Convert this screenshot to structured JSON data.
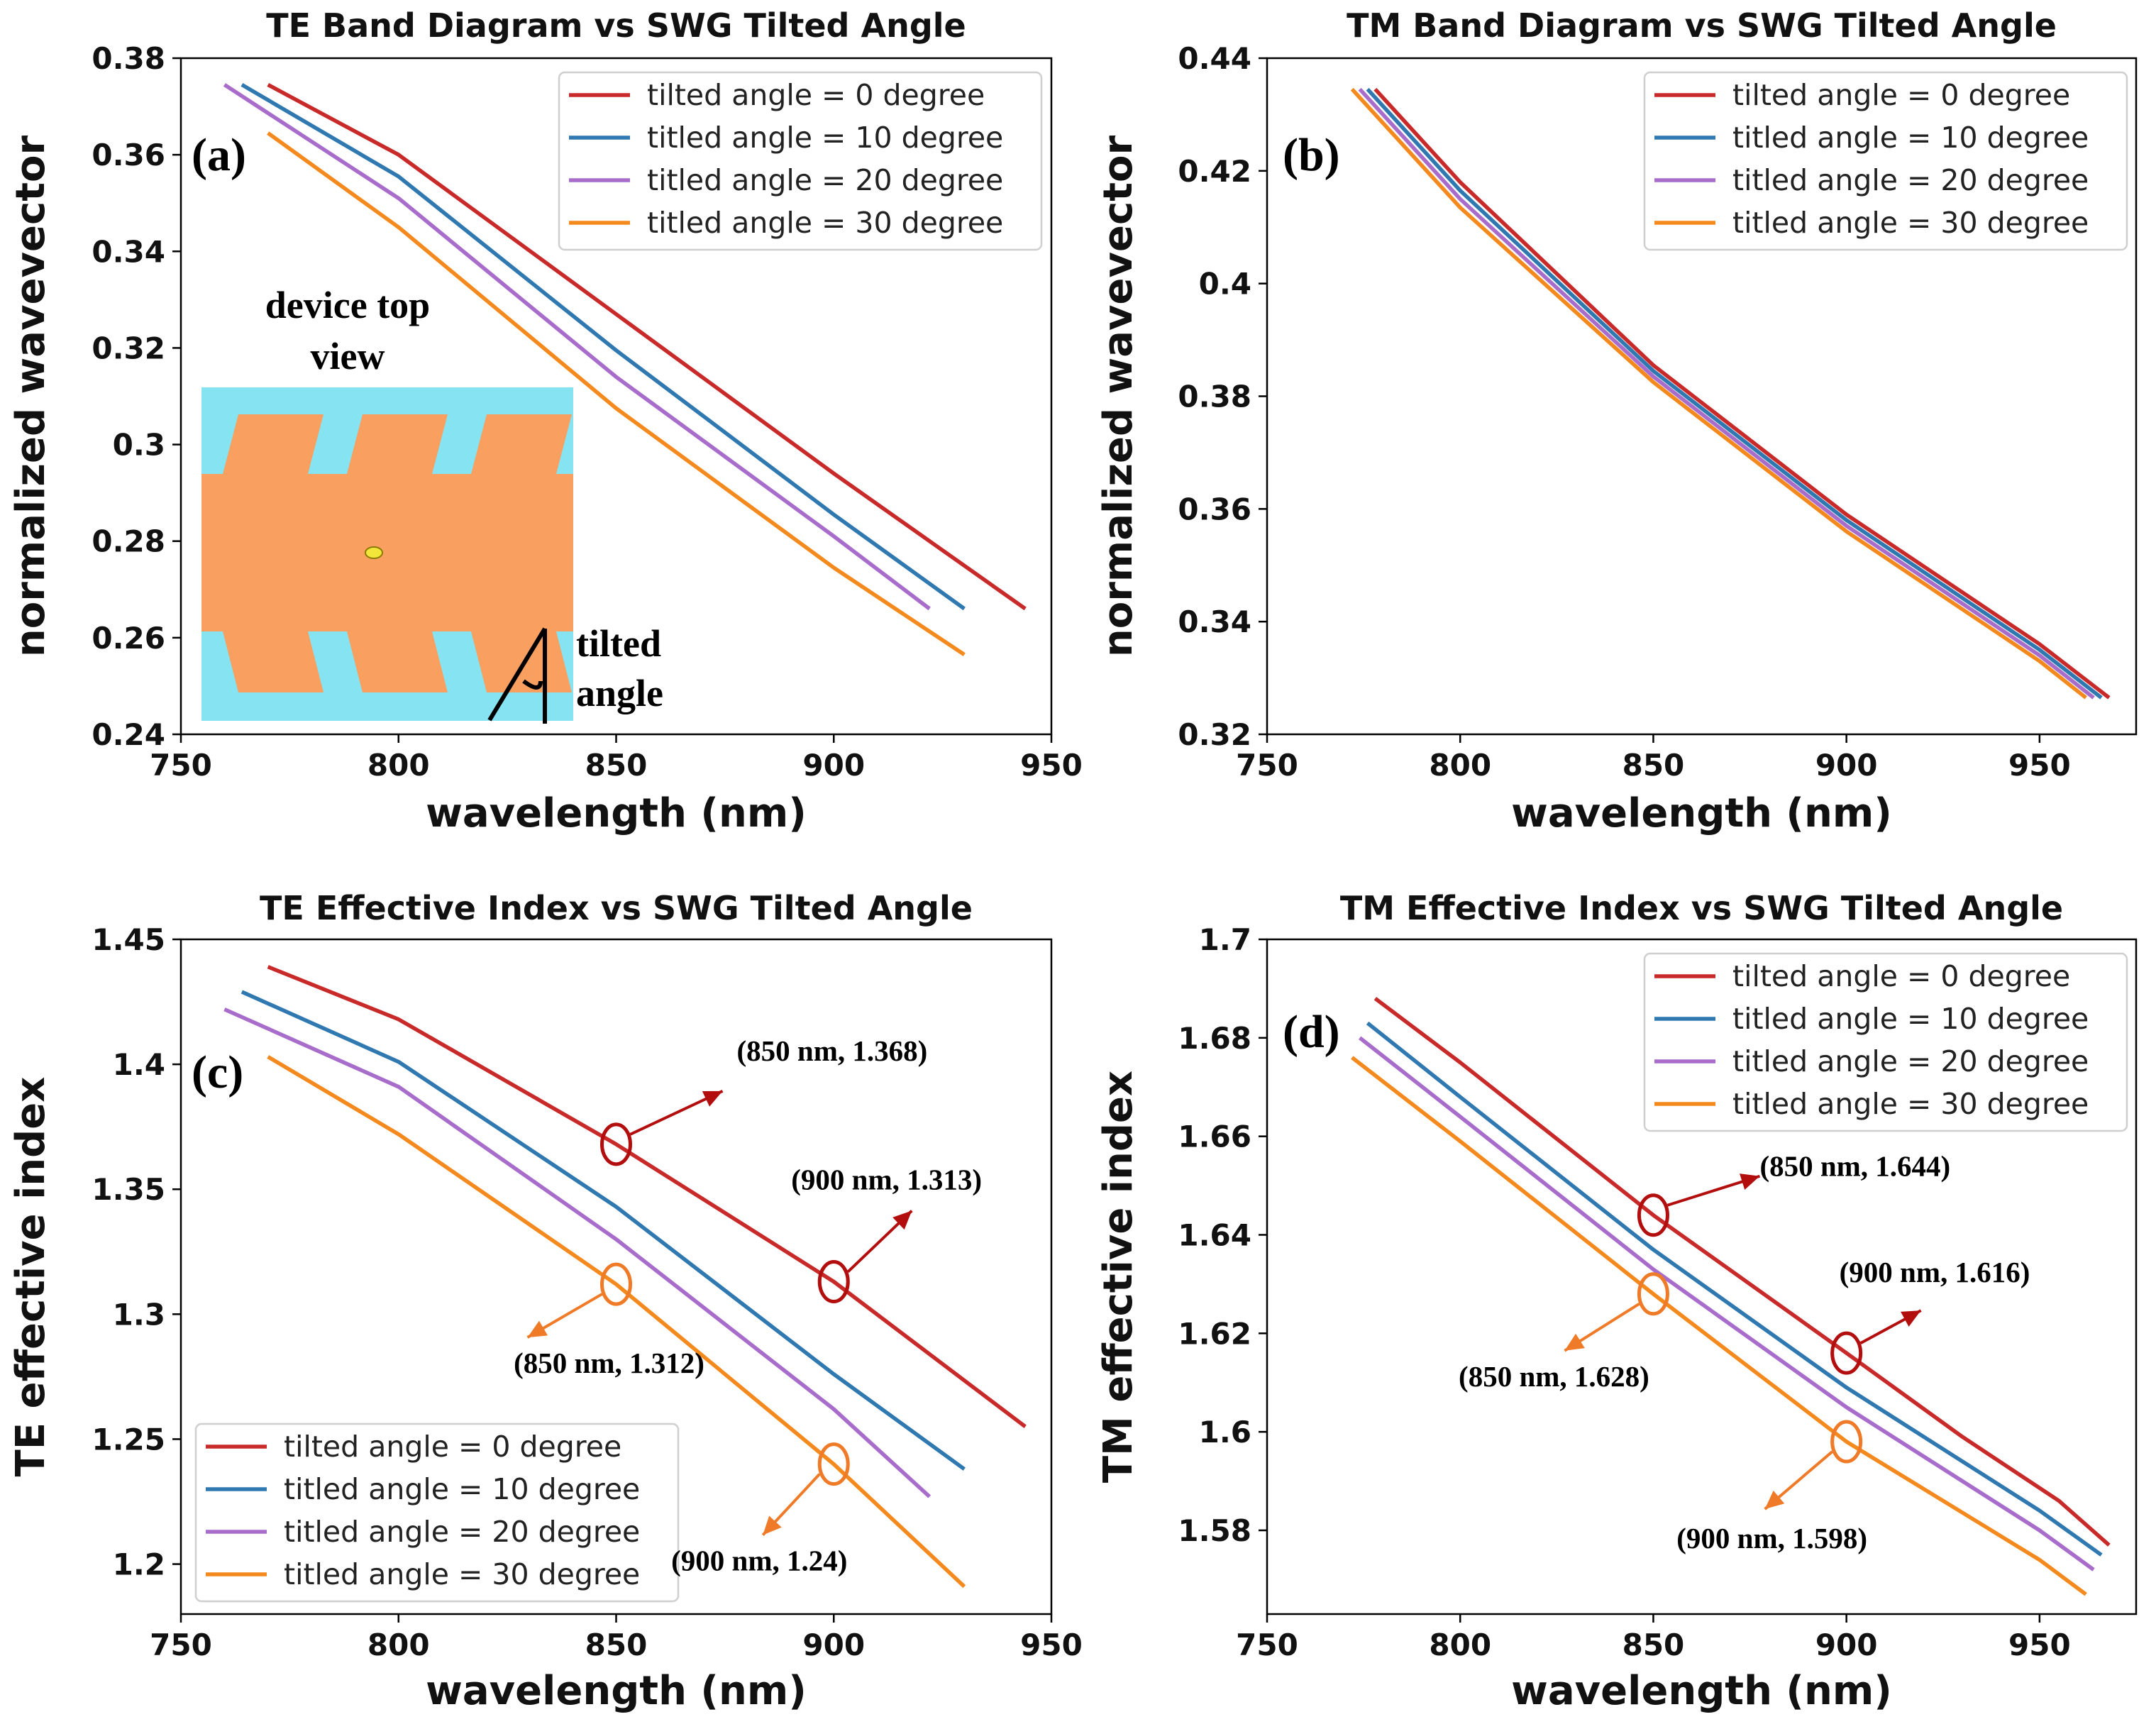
{
  "colors": {
    "red": "#c82a2a",
    "blue": "#2f78b0",
    "purple": "#a86ccb",
    "orange": "#f4891e",
    "ann_dark_red": "#b30e0e",
    "ann_orange": "#ef7a27",
    "inset_cyan": "#86e3f2",
    "inset_orange": "#f9a060",
    "inset_dot": "#f2e63a"
  },
  "chart_data": [
    {
      "panel": "(a)",
      "type": "line",
      "title": "TE Band Diagram vs SWG Tilted Angle",
      "xlabel": "wavelength (nm)",
      "ylabel": "normalized wavevector",
      "xlim": [
        750,
        950
      ],
      "ylim": [
        0.24,
        0.38
      ],
      "xticks": [
        "750",
        "800",
        "850",
        "900",
        "950"
      ],
      "yticks": [
        "0.24",
        "0.26",
        "0.28",
        "0.3",
        "0.32",
        "0.34",
        "0.36",
        "0.38"
      ],
      "legend_position": "top-right",
      "series": [
        {
          "name": "tilted angle = 0 degree",
          "color": "red",
          "points": [
            [
              770,
              0.3745
            ],
            [
              800,
              0.36
            ],
            [
              850,
              0.327
            ],
            [
              900,
              0.294
            ],
            [
              944,
              0.266
            ]
          ]
        },
        {
          "name": "titled angle = 10 degree",
          "color": "blue",
          "points": [
            [
              764,
              0.3745
            ],
            [
              800,
              0.3555
            ],
            [
              850,
              0.3195
            ],
            [
              900,
              0.2855
            ],
            [
              930,
              0.266
            ]
          ]
        },
        {
          "name": "titled angle = 20 degree",
          "color": "purple",
          "points": [
            [
              760,
              0.3745
            ],
            [
              800,
              0.351
            ],
            [
              850,
              0.314
            ],
            [
              900,
              0.281
            ],
            [
              922,
              0.266
            ]
          ]
        },
        {
          "name": "titled angle = 30 degree",
          "color": "orange",
          "points": [
            [
              770,
              0.3645
            ],
            [
              800,
              0.345
            ],
            [
              850,
              0.3075
            ],
            [
              900,
              0.2745
            ],
            [
              930,
              0.2565
            ]
          ]
        }
      ],
      "inset": {
        "title_line1": "device top",
        "title_line2": "view",
        "note_line1": "tilted",
        "note_line2": "angle"
      }
    },
    {
      "panel": "(b)",
      "type": "line",
      "title": "TM Band Diagram vs SWG Tilted Angle",
      "xlabel": "wavelength (nm)",
      "ylabel": "normalized wavevector",
      "xlim": [
        750,
        975
      ],
      "ylim": [
        0.32,
        0.44
      ],
      "xticks": [
        "750",
        "800",
        "850",
        "900",
        "950"
      ],
      "yticks": [
        "0.32",
        "0.34",
        "0.36",
        "0.38",
        "0.4",
        "0.42",
        "0.44"
      ],
      "legend_position": "top-right",
      "series": [
        {
          "name": "tilted angle = 0 degree",
          "color": "red",
          "points": [
            [
              778,
              0.4345
            ],
            [
              800,
              0.418
            ],
            [
              850,
              0.3855
            ],
            [
              900,
              0.359
            ],
            [
              950,
              0.336
            ],
            [
              968,
              0.3265
            ]
          ]
        },
        {
          "name": "titled angle = 10 degree",
          "color": "blue",
          "points": [
            [
              776,
              0.4345
            ],
            [
              800,
              0.4165
            ],
            [
              850,
              0.3845
            ],
            [
              900,
              0.358
            ],
            [
              950,
              0.335
            ],
            [
              966,
              0.3265
            ]
          ]
        },
        {
          "name": "titled angle = 20 degree",
          "color": "purple",
          "points": [
            [
              774,
              0.4345
            ],
            [
              800,
              0.415
            ],
            [
              850,
              0.3835
            ],
            [
              900,
              0.357
            ],
            [
              950,
              0.334
            ],
            [
              964,
              0.3265
            ]
          ]
        },
        {
          "name": "titled angle = 30 degree",
          "color": "orange",
          "points": [
            [
              772,
              0.4345
            ],
            [
              800,
              0.4135
            ],
            [
              850,
              0.3825
            ],
            [
              900,
              0.356
            ],
            [
              950,
              0.333
            ],
            [
              962,
              0.3265
            ]
          ]
        }
      ]
    },
    {
      "panel": "(c)",
      "type": "line",
      "title": "TE Effective Index vs SWG Tilted Angle",
      "xlabel": "wavelength (nm)",
      "ylabel": "TE effective index",
      "xlim": [
        750,
        950
      ],
      "ylim": [
        1.18,
        1.45
      ],
      "xticks": [
        "750",
        "800",
        "850",
        "900",
        "950"
      ],
      "yticks": [
        "1.2",
        "1.25",
        "1.3",
        "1.35",
        "1.4",
        "1.45"
      ],
      "legend_position": "lower-left",
      "series": [
        {
          "name": "tilted angle = 0 degree",
          "color": "red",
          "points": [
            [
              770,
              1.439
            ],
            [
              800,
              1.418
            ],
            [
              850,
              1.368
            ],
            [
              900,
              1.313
            ],
            [
              944,
              1.255
            ]
          ]
        },
        {
          "name": "titled angle = 10 degree",
          "color": "blue",
          "points": [
            [
              764,
              1.429
            ],
            [
              800,
              1.401
            ],
            [
              850,
              1.343
            ],
            [
              900,
              1.276
            ],
            [
              930,
              1.238
            ]
          ]
        },
        {
          "name": "titled angle = 20 degree",
          "color": "purple",
          "points": [
            [
              760,
              1.422
            ],
            [
              800,
              1.391
            ],
            [
              850,
              1.33
            ],
            [
              900,
              1.262
            ],
            [
              922,
              1.227
            ]
          ]
        },
        {
          "name": "titled angle = 30 degree",
          "color": "orange",
          "points": [
            [
              770,
              1.403
            ],
            [
              800,
              1.372
            ],
            [
              850,
              1.312
            ],
            [
              900,
              1.24
            ],
            [
              930,
              1.191
            ]
          ]
        }
      ],
      "annotations": [
        {
          "text": "(850 nm, 1.368)",
          "x": 850,
          "y": 1.368,
          "color": "ann_dark_red"
        },
        {
          "text": "(900 nm, 1.313)",
          "x": 900,
          "y": 1.313,
          "color": "ann_dark_red"
        },
        {
          "text": "(850 nm, 1.312)",
          "x": 850,
          "y": 1.312,
          "color": "ann_orange"
        },
        {
          "text": "(900 nm, 1.24)",
          "x": 900,
          "y": 1.24,
          "color": "ann_orange"
        }
      ]
    },
    {
      "panel": "(d)",
      "type": "line",
      "title": "TM Effective Index vs SWG Tilted Angle",
      "xlabel": "wavelength (nm)",
      "ylabel": "TM effective index",
      "xlim": [
        750,
        975
      ],
      "ylim": [
        1.563,
        1.7
      ],
      "xticks": [
        "750",
        "800",
        "850",
        "900",
        "950"
      ],
      "yticks": [
        "1.58",
        "1.6",
        "1.62",
        "1.64",
        "1.66",
        "1.68",
        "1.7"
      ],
      "legend_position": "top-right",
      "series": [
        {
          "name": "tilted angle = 0 degree",
          "color": "red",
          "points": [
            [
              778,
              1.688
            ],
            [
              800,
              1.675
            ],
            [
              850,
              1.644
            ],
            [
              900,
              1.616
            ],
            [
              930,
              1.599
            ],
            [
              955,
              1.586
            ],
            [
              968,
              1.577
            ]
          ]
        },
        {
          "name": "titled angle = 10 degree",
          "color": "blue",
          "points": [
            [
              776,
              1.683
            ],
            [
              800,
              1.668
            ],
            [
              850,
              1.637
            ],
            [
              900,
              1.609
            ],
            [
              950,
              1.584
            ],
            [
              966,
              1.575
            ]
          ]
        },
        {
          "name": "titled angle = 20 degree",
          "color": "purple",
          "points": [
            [
              774,
              1.68
            ],
            [
              800,
              1.664
            ],
            [
              850,
              1.633
            ],
            [
              900,
              1.605
            ],
            [
              950,
              1.58
            ],
            [
              964,
              1.572
            ]
          ]
        },
        {
          "name": "titled angle = 30 degree",
          "color": "orange",
          "points": [
            [
              772,
              1.676
            ],
            [
              800,
              1.659
            ],
            [
              850,
              1.628
            ],
            [
              900,
              1.598
            ],
            [
              950,
              1.574
            ],
            [
              962,
              1.567
            ]
          ]
        }
      ],
      "annotations": [
        {
          "text": "(850 nm, 1.644)",
          "x": 850,
          "y": 1.644,
          "color": "ann_dark_red"
        },
        {
          "text": "(900 nm, 1.616)",
          "x": 900,
          "y": 1.616,
          "color": "ann_dark_red"
        },
        {
          "text": "(850 nm, 1.628)",
          "x": 850,
          "y": 1.628,
          "color": "ann_orange"
        },
        {
          "text": "(900 nm, 1.598)",
          "x": 900,
          "y": 1.598,
          "color": "ann_orange"
        }
      ]
    }
  ]
}
